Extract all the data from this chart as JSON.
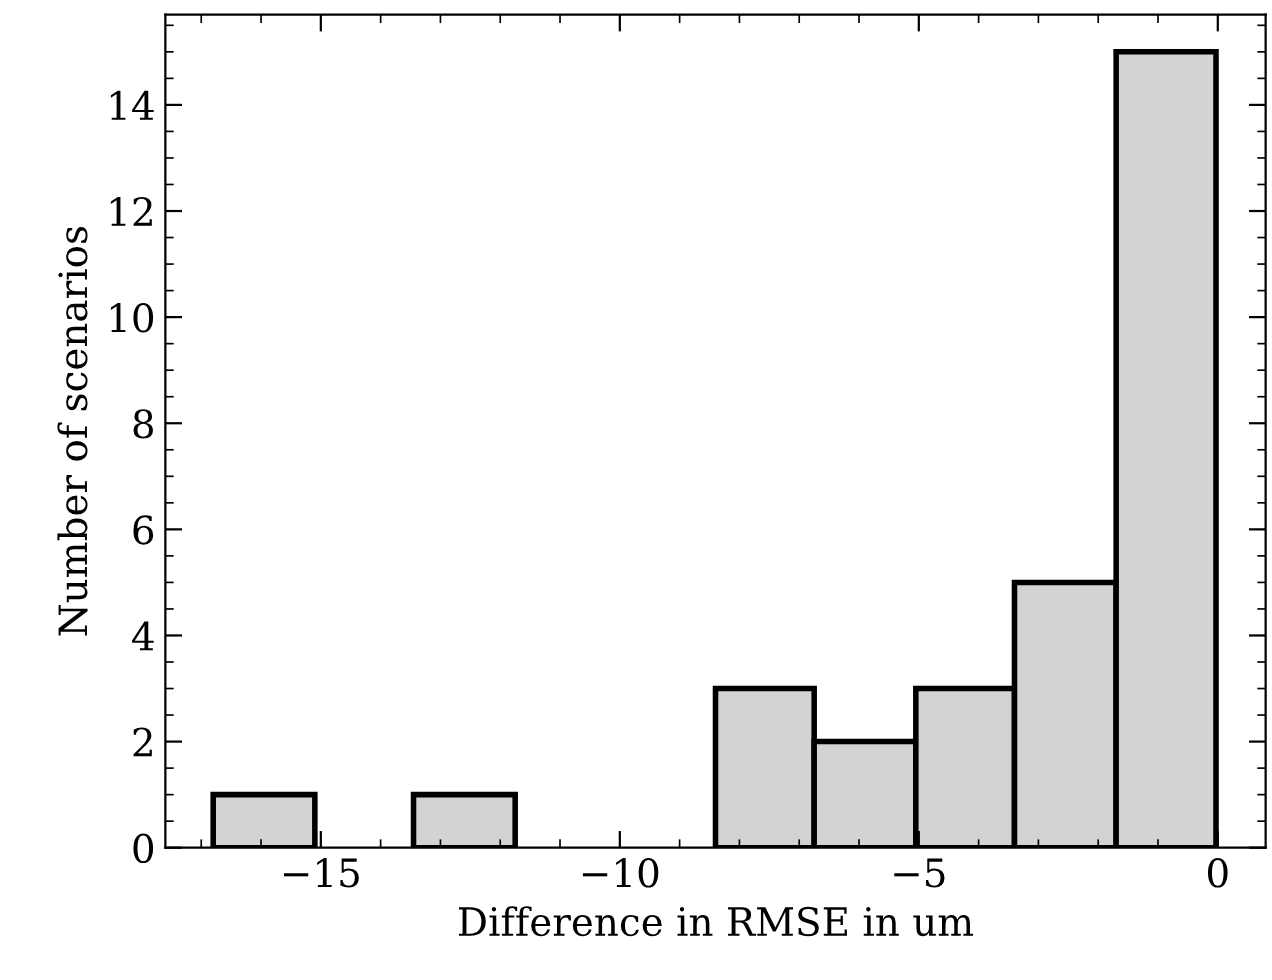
{
  "chart_data": {
    "type": "histogram",
    "xlabel": "Difference in RMSE in um",
    "ylabel": "Number of scenarios",
    "bins": [
      -16.8,
      -15.1,
      -13.45,
      -11.75,
      -8.4,
      -6.75,
      -5.05,
      -3.4,
      -1.7,
      -0.03
    ],
    "values": [
      1,
      0,
      1,
      0,
      3,
      2,
      3,
      5,
      15
    ],
    "color": "#d3d3d3",
    "xlim": [
      -17.6,
      0.8
    ],
    "xticks": [
      {
        "value": -15,
        "label": "−15"
      },
      {
        "value": -10,
        "label": "−10"
      },
      {
        "value": -5,
        "label": "−5"
      },
      0
    ],
    "ylim": [
      0,
      15.7
    ],
    "yticks": [
      0,
      2,
      4,
      6,
      8,
      10,
      12,
      14
    ],
    "grid": false
  }
}
